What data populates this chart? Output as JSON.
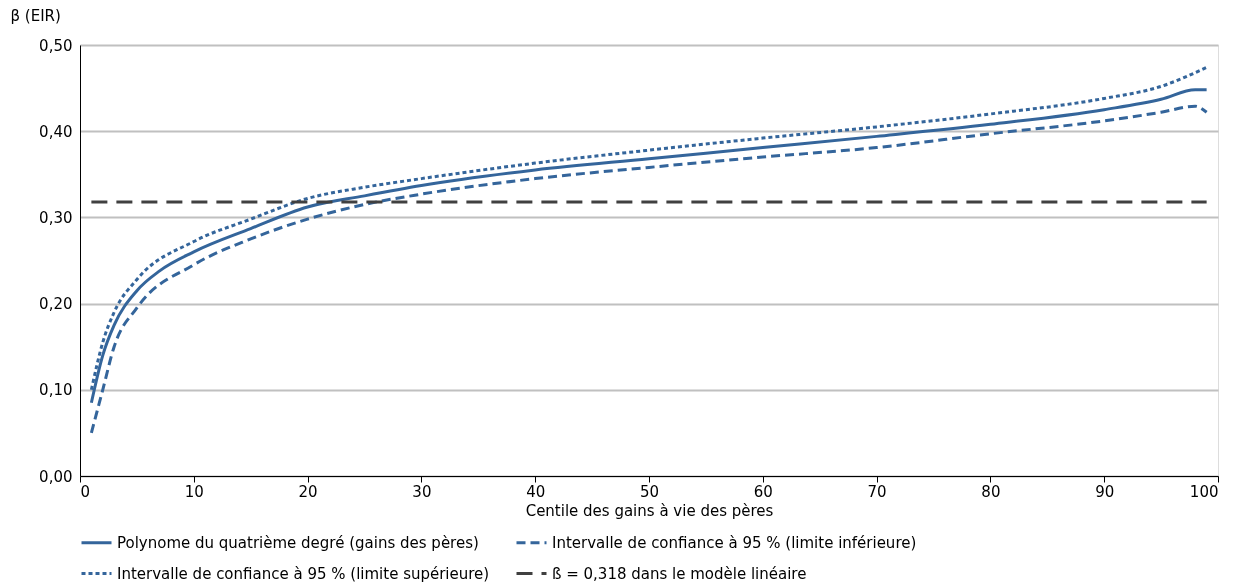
{
  "chart_data": {
    "type": "line",
    "ylabel": "β (EIR)",
    "xlabel": "Centile des gains à vie des pères",
    "xlim": [
      0,
      100
    ],
    "xticks": [
      0,
      10,
      20,
      30,
      40,
      50,
      60,
      70,
      80,
      90,
      100
    ],
    "ylim": [
      0,
      0.5
    ],
    "yticks": [
      {
        "value": 0,
        "label": "0,00"
      },
      {
        "value": 0.1,
        "label": "0,10"
      },
      {
        "value": 0.2,
        "label": "0,20"
      },
      {
        "value": 0.3,
        "label": "0,30"
      },
      {
        "value": 0.4,
        "label": "0,40"
      },
      {
        "value": 0.5,
        "label": "0,50"
      }
    ],
    "grid": "y",
    "legend": "bottom",
    "marker": "none",
    "series": [
      {
        "name": "Polynome du quatrième degré (gains des pères)",
        "color": "#34659b",
        "line_style": "solid",
        "x": [
          1,
          2,
          3,
          5,
          7,
          10,
          15,
          20,
          25,
          30,
          40,
          50,
          60,
          70,
          80,
          90,
          95,
          98,
          99
        ],
        "values": [
          0.085,
          0.14,
          0.175,
          0.215,
          0.238,
          0.26,
          0.287,
          0.312,
          0.325,
          0.337,
          0.355,
          0.368,
          0.381,
          0.394,
          0.408,
          0.425,
          0.437,
          0.448,
          0.448
        ]
      },
      {
        "name": "Intervalle de confiance à 95 % (limite inférieure)",
        "color": "#34659b",
        "line_style": "dashed",
        "x": [
          1,
          2,
          3,
          5,
          10,
          15,
          20,
          25,
          30,
          40,
          50,
          60,
          70,
          80,
          90,
          95,
          98,
          99
        ],
        "values": [
          0.05,
          0.1,
          0.15,
          0.195,
          0.245,
          0.275,
          0.298,
          0.315,
          0.327,
          0.345,
          0.358,
          0.37,
          0.381,
          0.397,
          0.412,
          0.422,
          0.429,
          0.422
        ]
      },
      {
        "name": "Intervalle de confiance à 95 % (limite supérieure)",
        "color": "#34659b",
        "line_style": "dotted",
        "x": [
          1,
          2,
          3,
          5,
          10,
          15,
          20,
          25,
          30,
          40,
          50,
          60,
          70,
          80,
          90,
          95,
          99
        ],
        "values": [
          0.1,
          0.155,
          0.19,
          0.228,
          0.272,
          0.298,
          0.322,
          0.335,
          0.345,
          0.363,
          0.378,
          0.392,
          0.405,
          0.42,
          0.438,
          0.452,
          0.474
        ]
      },
      {
        "name": "ß = 0,318 dans le modèle linéaire",
        "color": "#404040",
        "line_style": "longdash",
        "x": [
          1,
          99
        ],
        "values": [
          0.318,
          0.318
        ]
      }
    ]
  }
}
